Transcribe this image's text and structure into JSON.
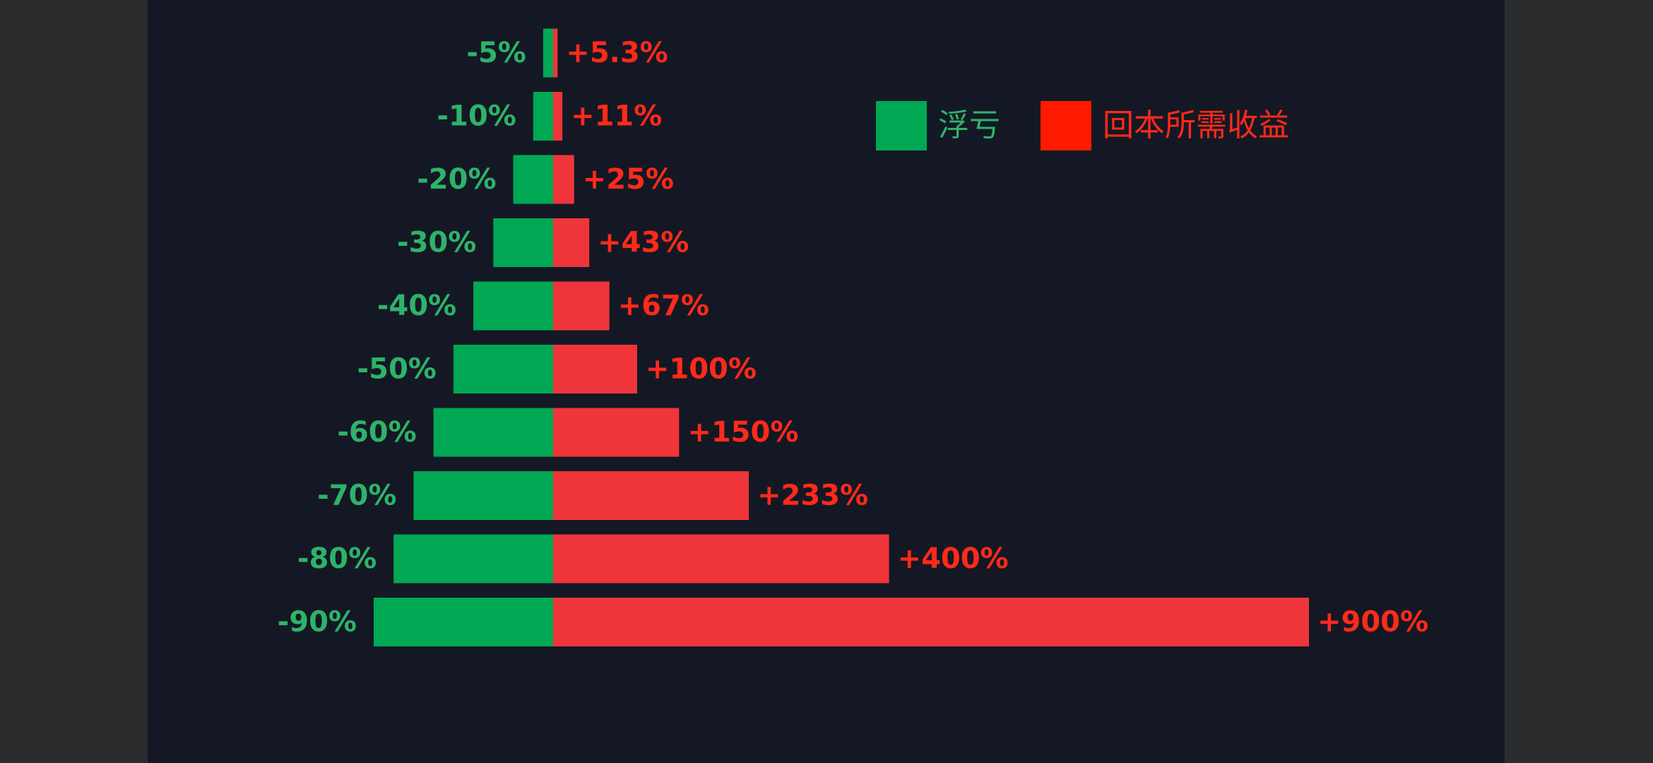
{
  "chart_data": {
    "type": "bar",
    "legend": "top-right",
    "series": [
      {
        "name": "浮亏",
        "color": "#00a854",
        "values": [
          -5,
          -10,
          -20,
          -30,
          -40,
          -50,
          -60,
          -70,
          -80,
          -90
        ],
        "value_labels": [
          "-5%",
          "-10%",
          "-20%",
          "-30%",
          "-40%",
          "-50%",
          "-60%",
          "-70%",
          "-80%",
          "-90%"
        ]
      },
      {
        "name": "回本所需收益",
        "color": "#f0353a",
        "values": [
          5.3,
          11,
          25,
          43,
          67,
          100,
          150,
          233,
          400,
          900
        ],
        "value_labels": [
          "+5.3%",
          "+11%",
          "+25%",
          "+43%",
          "+67%",
          "+100%",
          "+150%",
          "+233%",
          "+400%",
          "+900%"
        ]
      }
    ]
  }
}
